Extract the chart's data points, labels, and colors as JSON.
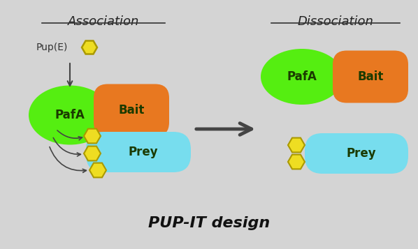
{
  "bg_color": "#d4d4d4",
  "green_color": "#55ee11",
  "orange_color": "#e87820",
  "cyan_color": "#77ddee",
  "yellow_color": "#eedd22",
  "yellow_edge": "#aa9900",
  "dark_text": "#1a3a00",
  "arrow_color": "#444444",
  "title": "PUP-IT design",
  "assoc_label": "Association",
  "dissoc_label": "Dissociation",
  "pupe_label": "Pup(E)",
  "pafa_label": "PafA",
  "bait_label": "Bait",
  "prey_label": "Prey",
  "figw": 5.98,
  "figh": 3.57,
  "dpi": 100
}
